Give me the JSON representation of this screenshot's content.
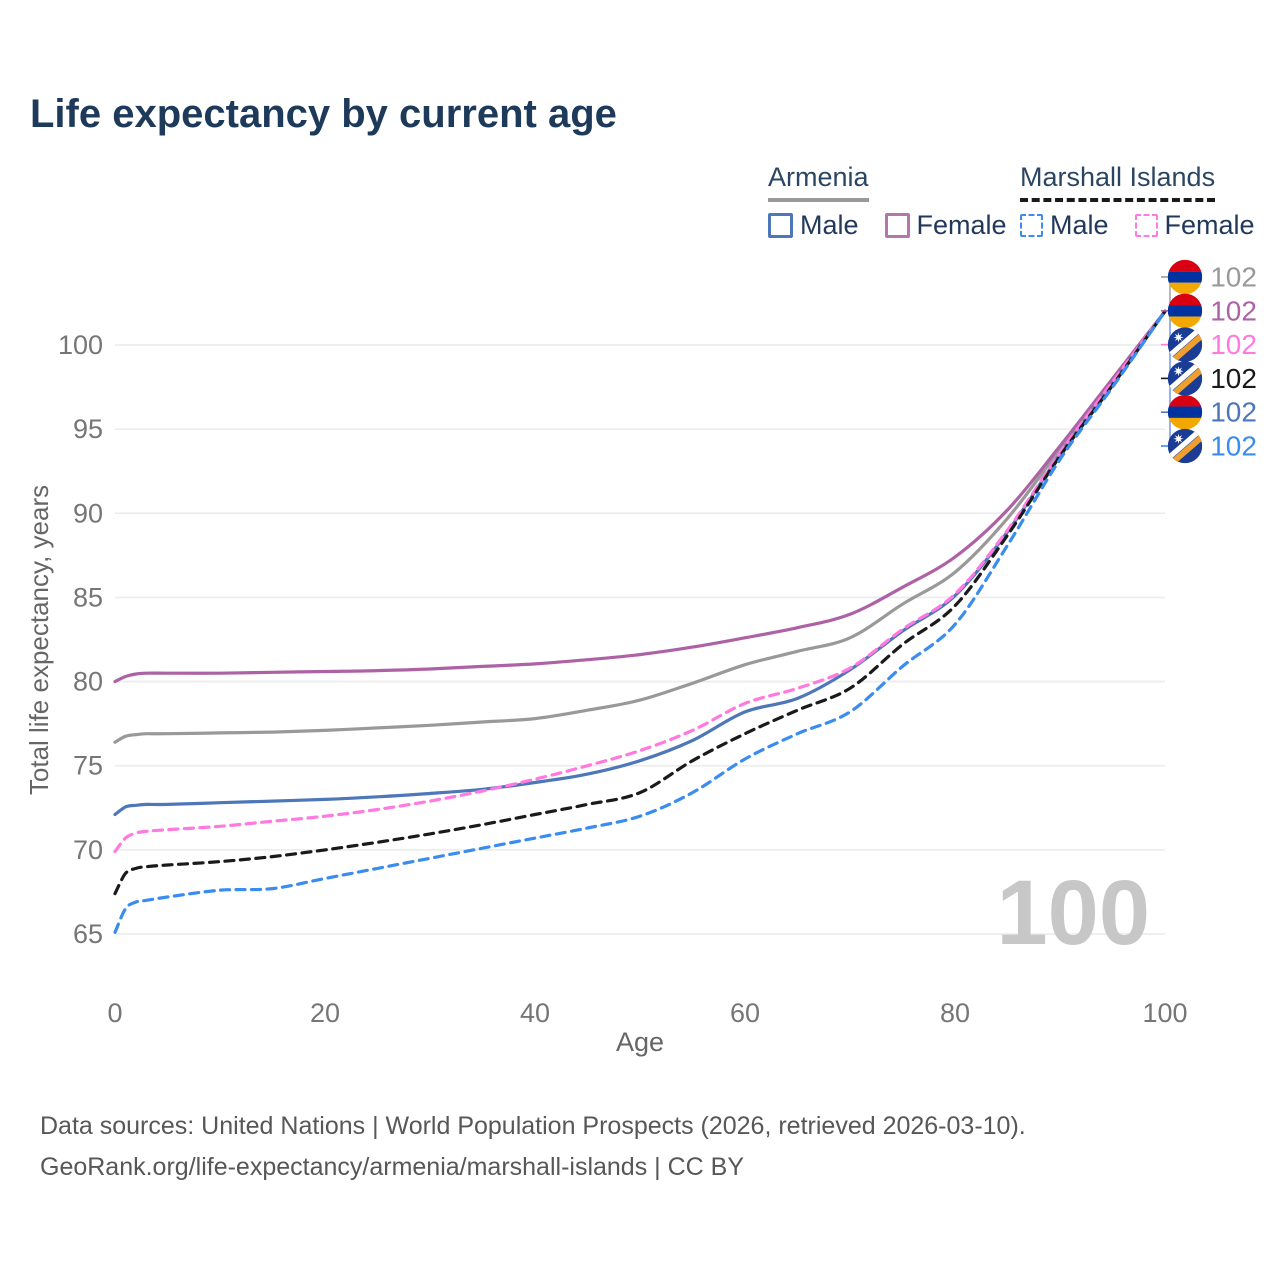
{
  "header": {
    "title": "Life expectancy by current age"
  },
  "legend": {
    "groups": [
      {
        "label": "Armenia",
        "line_style": "solid",
        "line_color": "#999999",
        "items": [
          {
            "label": "Male",
            "color": "#4d77b8",
            "style": "solid"
          },
          {
            "label": "Female",
            "color": "#b377ad",
            "style": "solid"
          }
        ]
      },
      {
        "label": "Marshall Islands",
        "line_style": "dashed",
        "line_color": "#1a1a1a",
        "items": [
          {
            "label": "Male",
            "color": "#3a8dee",
            "style": "dashed"
          },
          {
            "label": "Female",
            "color": "#ff7ae0",
            "style": "dashed"
          }
        ]
      }
    ]
  },
  "chart_data": {
    "type": "line",
    "title": "Life expectancy by current age",
    "xlabel": "Age",
    "ylabel": "Total life expectancy, years",
    "xlim": [
      0,
      100
    ],
    "ylim": [
      63.5,
      103
    ],
    "xticks": [
      "0",
      "20",
      "40",
      "60",
      "80",
      "100"
    ],
    "yticks": [
      "65",
      "70",
      "75",
      "80",
      "85",
      "90",
      "95",
      "100"
    ],
    "grid": "horizontal-only",
    "legend_position": "top-right",
    "watermark": "100",
    "x": [
      0,
      1,
      2,
      3,
      5,
      10,
      15,
      20,
      25,
      30,
      35,
      40,
      45,
      50,
      55,
      60,
      65,
      70,
      75,
      80,
      85,
      90,
      95,
      100
    ],
    "series": [
      {
        "id": "armenia-all",
        "name": "Armenia — Total",
        "country": "armenia",
        "sex": "all",
        "color": "#999999",
        "dashed": false,
        "end_label": "102",
        "values": [
          76.4,
          76.75,
          76.85,
          76.9,
          76.9,
          76.95,
          77.0,
          77.1,
          77.25,
          77.4,
          77.6,
          77.8,
          78.3,
          78.9,
          79.9,
          81.0,
          81.8,
          82.6,
          84.6,
          86.5,
          89.7,
          93.8,
          97.9,
          102
        ]
      },
      {
        "id": "armenia-female",
        "name": "Armenia — Female",
        "country": "armenia",
        "sex": "female",
        "color": "#ad62a6",
        "dashed": false,
        "end_label": "102",
        "values": [
          80.0,
          80.3,
          80.45,
          80.5,
          80.5,
          80.5,
          80.55,
          80.6,
          80.65,
          80.75,
          80.9,
          81.05,
          81.3,
          81.6,
          82.05,
          82.6,
          83.2,
          84.0,
          85.6,
          87.4,
          90.2,
          94.0,
          98.0,
          102
        ]
      },
      {
        "id": "armenia-male",
        "name": "Armenia — Male",
        "country": "armenia",
        "sex": "male",
        "color": "#4d77b8",
        "dashed": false,
        "end_label": "102",
        "values": [
          72.1,
          72.55,
          72.65,
          72.7,
          72.7,
          72.8,
          72.9,
          73.0,
          73.15,
          73.35,
          73.6,
          74.0,
          74.5,
          75.3,
          76.5,
          78.2,
          79.0,
          80.7,
          83.0,
          85.1,
          88.9,
          93.5,
          97.7,
          102
        ]
      },
      {
        "id": "marshall-islands-female",
        "name": "Marshall Islands — Female",
        "country": "marshall-islands",
        "sex": "female",
        "color": "#ff7ae0",
        "dashed": true,
        "end_label": "102",
        "values": [
          69.9,
          70.7,
          71.0,
          71.1,
          71.2,
          71.4,
          71.7,
          72.0,
          72.4,
          72.9,
          73.5,
          74.2,
          75.0,
          75.9,
          77.1,
          78.7,
          79.6,
          80.8,
          83.1,
          85.2,
          89.0,
          93.6,
          97.8,
          102
        ]
      },
      {
        "id": "marshall-islands-all",
        "name": "Marshall Islands — Total",
        "country": "marshall-islands",
        "sex": "all",
        "color": "#1a1a1a",
        "dashed": true,
        "end_label": "102",
        "values": [
          67.4,
          68.6,
          68.9,
          69.0,
          69.1,
          69.3,
          69.6,
          70.0,
          70.45,
          70.95,
          71.5,
          72.1,
          72.7,
          73.4,
          75.3,
          76.9,
          78.3,
          79.6,
          82.2,
          84.5,
          88.7,
          93.4,
          97.6,
          102
        ]
      },
      {
        "id": "marshall-islands-male",
        "name": "Marshall Islands — Male",
        "country": "marshall-islands",
        "sex": "male",
        "color": "#3a8dee",
        "dashed": true,
        "end_label": "102",
        "values": [
          65.1,
          66.5,
          66.9,
          67.0,
          67.2,
          67.6,
          67.7,
          68.3,
          68.9,
          69.5,
          70.1,
          70.7,
          71.3,
          72.0,
          73.4,
          75.4,
          76.9,
          78.2,
          80.9,
          83.4,
          88.1,
          93.2,
          97.5,
          102
        ]
      }
    ],
    "end_label_order": [
      "armenia-all",
      "armenia-female",
      "marshall-islands-female",
      "marshall-islands-all",
      "armenia-male",
      "marshall-islands-male"
    ],
    "flag_colors": {
      "armenia": {
        "red": "#d90012",
        "blue": "#0033a0",
        "orange": "#f2a800"
      },
      "marshall-islands": {
        "blue": "#1a3c94",
        "white": "#ffffff",
        "orange": "#ef9f2e"
      }
    }
  },
  "footer": {
    "line1": "Data sources: United Nations | World Population Prospects (2026, retrieved 2026-03-10).",
    "line2": "GeoRank.org/life-expectancy/armenia/marshall-islands | CC BY"
  }
}
